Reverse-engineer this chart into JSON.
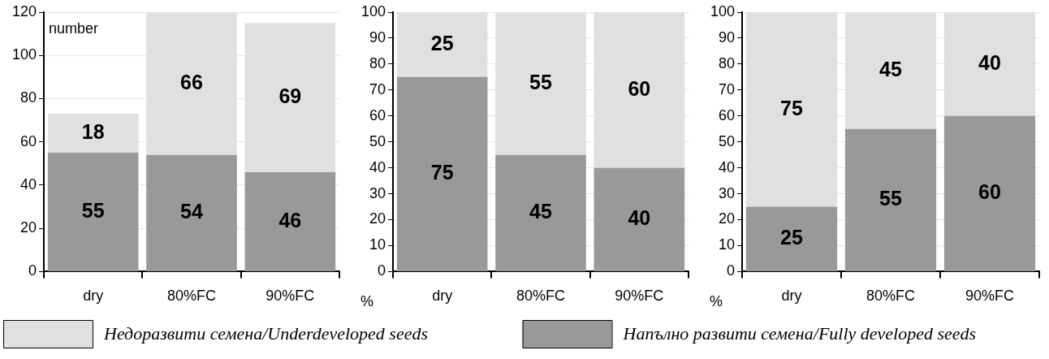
{
  "chart_data": [
    {
      "type": "bar",
      "ylabel": "number",
      "categories": [
        "dry",
        "80%FC",
        "90%FC"
      ],
      "stacked": true,
      "data_labels": true,
      "grid": "y",
      "legend": "bottom",
      "ylim": [
        0,
        120
      ],
      "yticks": [
        0,
        20,
        40,
        60,
        80,
        100,
        120
      ],
      "series": [
        {
          "name": "Напълно развити семена/Fully developed seeds",
          "color": "#999999",
          "values": [
            55,
            54,
            46
          ]
        },
        {
          "name": "Недоразвити семена/Underdeveloped seeds",
          "color": "#e0e0e0",
          "values": [
            18,
            66,
            69
          ]
        }
      ]
    },
    {
      "type": "bar",
      "ylabel": "%",
      "categories": [
        "dry",
        "80%FC",
        "90%FC"
      ],
      "stacked": true,
      "data_labels": true,
      "grid": "y",
      "ylim": [
        0,
        100
      ],
      "yticks": [
        0,
        10,
        20,
        30,
        40,
        50,
        60,
        70,
        80,
        90,
        100
      ],
      "series": [
        {
          "color": "#999999",
          "values": [
            75,
            45,
            40
          ]
        },
        {
          "color": "#e0e0e0",
          "values": [
            25,
            55,
            60
          ]
        }
      ]
    },
    {
      "type": "bar",
      "ylabel": "%",
      "categories": [
        "dry",
        "80%FC",
        "90%FC"
      ],
      "stacked": true,
      "data_labels": true,
      "grid": "y",
      "ylim": [
        0,
        100
      ],
      "yticks": [
        0,
        10,
        20,
        30,
        40,
        50,
        60,
        70,
        80,
        90,
        100
      ],
      "series": [
        {
          "color": "#999999",
          "values": [
            25,
            55,
            60
          ]
        },
        {
          "color": "#e0e0e0",
          "values": [
            75,
            45,
            40
          ]
        }
      ]
    }
  ]
}
